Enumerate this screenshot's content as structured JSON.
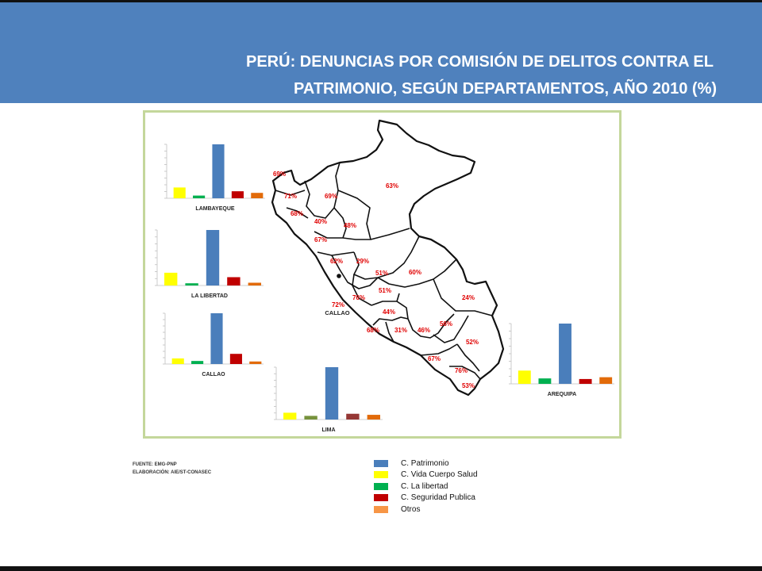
{
  "title": {
    "line1": "PERÚ: DENUNCIAS POR COMISIÓN DE DELITOS CONTRA EL",
    "line2": "PATRIMONIO, SEGÚN DEPARTAMENTOS, AÑO  2010  (%)"
  },
  "colors": {
    "header": "#4f81bd",
    "frame": "#c4d79b",
    "percent_label": "#e00000",
    "map_outline": "#111111"
  },
  "map": {
    "callao_label": "CALLAO",
    "percent_labels": [
      "69%",
      "71%",
      "69%",
      "68%",
      "40%",
      "48%",
      "67%",
      "63%",
      "62%",
      "29%",
      "51%",
      "60%",
      "76%",
      "51%",
      "72%",
      "44%",
      "24%",
      "68%",
      "31%",
      "46%",
      "56%",
      "52%",
      "67%",
      "76%",
      "53%"
    ]
  },
  "legend": {
    "items": [
      {
        "label": "C. Patrimonio",
        "color": "#4a7ebb"
      },
      {
        "label": "C. Vida Cuerpo  Salud",
        "color": "#ffff00"
      },
      {
        "label": "C. La libertad",
        "color": "#00b050"
      },
      {
        "label": "C. Seguridad Publica",
        "color": "#c00000"
      },
      {
        "label": "Otros",
        "color": "#f79646"
      }
    ]
  },
  "source": {
    "line1": "FUENTE: EMG-PNP",
    "line2": "ELABORACIÓN: AIE/ST-CONASEC"
  },
  "chart_data": [
    {
      "type": "bar",
      "title": "LAMBAYEQUE",
      "categories": [
        "C. Vida Cuerpo  Salud",
        "C. La libertad",
        "C. Patrimonio",
        "C. Seguridad Publica",
        "Otros"
      ],
      "values": [
        20,
        5,
        100,
        13,
        10
      ],
      "colors": [
        "#ffff00",
        "#00b050",
        "#4a7ebb",
        "#c00000",
        "#e26b0a"
      ]
    },
    {
      "type": "bar",
      "title": "LA LIBERTAD",
      "categories": [
        "C. Vida Cuerpo  Salud",
        "C. La libertad",
        "C. Patrimonio",
        "C. Seguridad Publica",
        "Otros"
      ],
      "values": [
        23,
        4,
        100,
        15,
        5
      ],
      "colors": [
        "#ffff00",
        "#00b050",
        "#4a7ebb",
        "#c00000",
        "#e26b0a"
      ]
    },
    {
      "type": "bar",
      "title": "CALLAO",
      "categories": [
        "C. Vida Cuerpo  Salud",
        "C. La libertad",
        "C. Patrimonio",
        "C. Seguridad Publica",
        "Otros"
      ],
      "values": [
        11,
        6,
        100,
        20,
        5
      ],
      "colors": [
        "#ffff00",
        "#00b050",
        "#4a7ebb",
        "#c00000",
        "#e26b0a"
      ]
    },
    {
      "type": "bar",
      "title": "LIMA",
      "categories": [
        "C. Vida Cuerpo  Salud",
        "C. La libertad",
        "C. Patrimonio",
        "C. Seguridad Publica",
        "Otros"
      ],
      "values": [
        13,
        7,
        100,
        11,
        9
      ],
      "colors": [
        "#ffff00",
        "#76923c",
        "#4a7ebb",
        "#953735",
        "#e26b0a"
      ]
    },
    {
      "type": "bar",
      "title": "AREQUIPA",
      "categories": [
        "C. Vida Cuerpo  Salud",
        "C. La libertad",
        "C. Patrimonio",
        "C. Seguridad Publica",
        "Otros"
      ],
      "values": [
        22,
        9,
        100,
        8,
        11
      ],
      "colors": [
        "#ffff00",
        "#00b050",
        "#4a7ebb",
        "#c00000",
        "#e26b0a"
      ]
    }
  ]
}
